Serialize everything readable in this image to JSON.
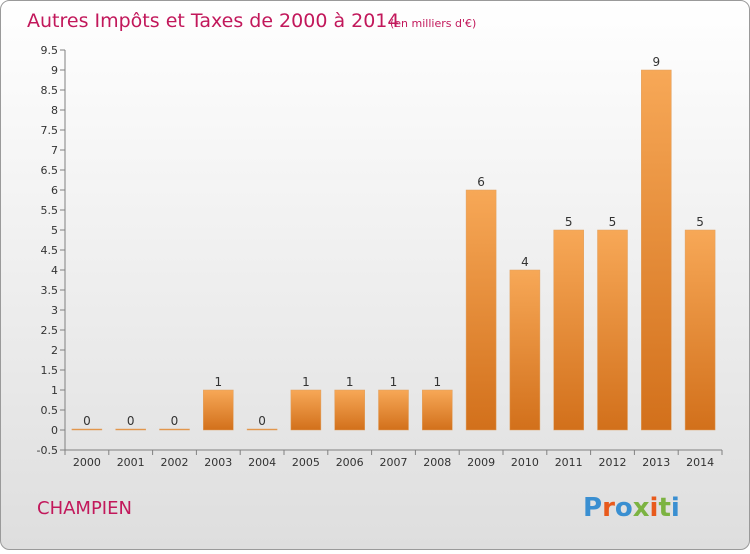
{
  "chart_data": {
    "type": "bar",
    "title": "Autres Impôts et Taxes de 2000 à 2014",
    "subtitle": "(en milliers d'€)",
    "categories": [
      "2000",
      "2001",
      "2002",
      "2003",
      "2004",
      "2005",
      "2006",
      "2007",
      "2008",
      "2009",
      "2010",
      "2011",
      "2012",
      "2013",
      "2014"
    ],
    "values": [
      0,
      0,
      0,
      1,
      0,
      1,
      1,
      1,
      1,
      6,
      4,
      5,
      5,
      9,
      5
    ],
    "value_labels": [
      "0",
      "0",
      "0",
      "1",
      "0",
      "1",
      "1",
      "1",
      "1",
      "6",
      "4",
      "5",
      "5",
      "9",
      "5"
    ],
    "ylim": [
      -0.5,
      9.5
    ],
    "yticks": [
      -0.5,
      0,
      0.5,
      1,
      1.5,
      2,
      2.5,
      3,
      3.5,
      4,
      4.5,
      5,
      5.5,
      6,
      6.5,
      7,
      7.5,
      8,
      8.5,
      9,
      9.5
    ],
    "ytick_labels": [
      "-0.5",
      "0",
      "0.5",
      "1",
      "1.5",
      "2",
      "2.5",
      "3",
      "3.5",
      "4",
      "4.5",
      "5",
      "5.5",
      "6",
      "6.5",
      "7",
      "7.5",
      "8",
      "8.5",
      "9",
      "9.5"
    ],
    "grid": false,
    "legend": "none",
    "colors": {
      "bar_top": "#F7A857",
      "bar_bottom": "#D2701B",
      "title": "#C2185B",
      "background_top": "#FFFFFF",
      "background_bottom": "#DEDEDE"
    }
  },
  "commune": "CHAMPIEN",
  "logo": {
    "text": "Proxiti",
    "letter_colors": [
      "#3A8FD1",
      "#E85A1C",
      "#3A8FD1",
      "#7CB342",
      "#E85A1C",
      "#7CB342",
      "#3A8FD1"
    ]
  }
}
